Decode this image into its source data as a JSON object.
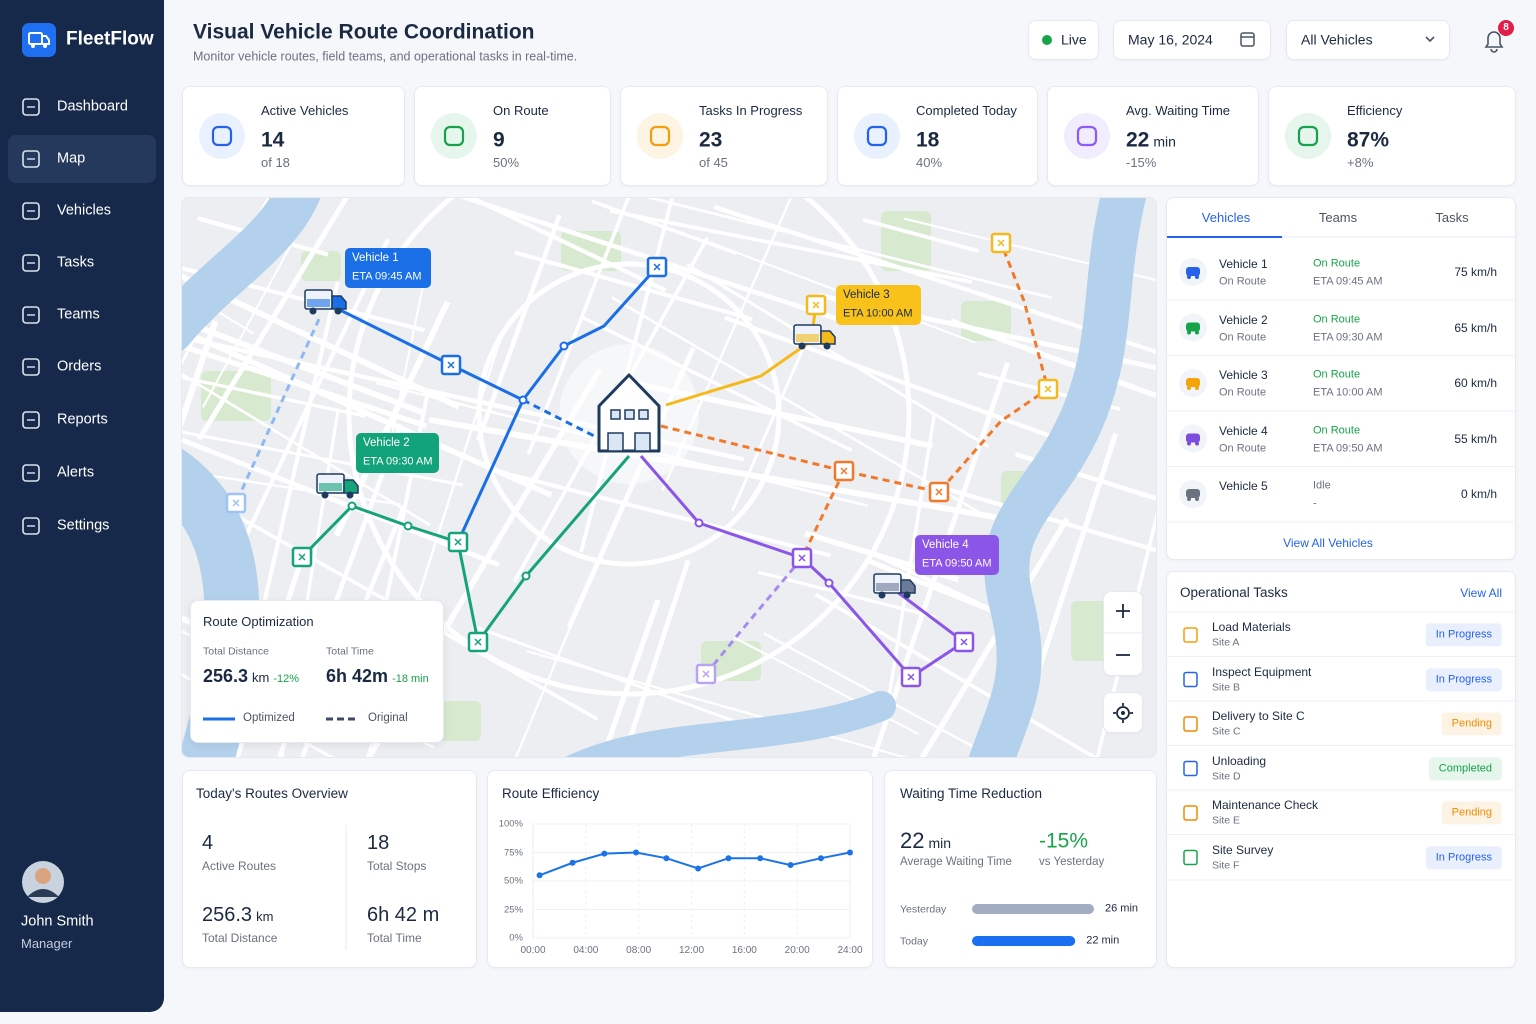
{
  "sidebar": {
    "brand": "FleetFlow",
    "nav": [
      "Dashboard",
      "Map",
      "Vehicles",
      "Tasks",
      "Teams",
      "Orders",
      "Reports",
      "Alerts",
      "Settings"
    ],
    "active": 1,
    "user": {
      "name": "John Smith",
      "role": "Manager"
    }
  },
  "header": {
    "title": "Visual Vehicle Route Coordination",
    "subtitle": "Monitor vehicle routes, field teams, and operational tasks in real-time.",
    "live": "Live",
    "date": "May 16, 2024",
    "filter": "All Vehicles",
    "notifications": 8
  },
  "stats": [
    {
      "label": "Active Vehicles",
      "value": 14,
      "sub": "of 18"
    },
    {
      "label": "On Route",
      "value": 9,
      "sub": "50%"
    },
    {
      "label": "Tasks In Progress",
      "value": 23,
      "sub": "of 45"
    },
    {
      "label": "Completed Today",
      "value": 18,
      "sub": "40%"
    },
    {
      "label": "Avg. Waiting Time",
      "value": 22,
      "unit": "min",
      "sub": "-15%"
    },
    {
      "label": "Efficiency",
      "value": "87%",
      "sub": "+8%"
    }
  ],
  "map": {
    "callouts": [
      {
        "vehicle": "Vehicle 1",
        "eta": "ETA 09:45 AM",
        "color": "#1a6fe6"
      },
      {
        "vehicle": "Vehicle 2",
        "eta": "ETA 09:30 AM",
        "color": "#12a37a"
      },
      {
        "vehicle": "Vehicle 3",
        "eta": "ETA 10:00 AM",
        "color": "#f8c21b"
      },
      {
        "vehicle": "Vehicle 4",
        "eta": "ETA 09:50 AM",
        "color": "#8b55e8"
      }
    ],
    "optimization": {
      "title": "Route Optimization",
      "distance_label": "Total Distance",
      "distance": 256.3,
      "distance_unit": "km",
      "distance_change": "-12%",
      "time_label": "Total Time",
      "time": "6h 42m",
      "time_change": "-18 min",
      "legend": [
        "Optimized",
        "Original"
      ]
    }
  },
  "vehicles_panel": {
    "tabs": [
      "Vehicles",
      "Teams",
      "Tasks"
    ],
    "rows": [
      {
        "name": "Vehicle 1",
        "state": "On Route",
        "status": "On Route",
        "eta": "ETA 09:45 AM",
        "speed": "75 km/h",
        "color": "#2563eb"
      },
      {
        "name": "Vehicle 2",
        "state": "On Route",
        "status": "On Route",
        "eta": "ETA 09:30 AM",
        "speed": "65 km/h",
        "color": "#16a34a"
      },
      {
        "name": "Vehicle 3",
        "state": "On Route",
        "status": "On Route",
        "eta": "ETA 10:00 AM",
        "speed": "60 km/h",
        "color": "#f5a30b"
      },
      {
        "name": "Vehicle 4",
        "state": "On Route",
        "status": "On Route",
        "eta": "ETA 09:50 AM",
        "speed": "55 km/h",
        "color": "#7c4ddf"
      },
      {
        "name": "Vehicle 5",
        "status": "Idle",
        "eta": "-",
        "speed": "0 km/h",
        "color": "#6b7280"
      }
    ],
    "link": "View All Vehicles"
  },
  "tasks_panel": {
    "title": "Operational Tasks",
    "link": "View All",
    "rows": [
      {
        "name": "Load Materials",
        "site": "Site A",
        "status": "In Progress",
        "color": "#2563eb"
      },
      {
        "name": "Inspect Equipment",
        "site": "Site B",
        "status": "In Progress",
        "color": "#2563eb"
      },
      {
        "name": "Delivery to Site C",
        "site": "Site C",
        "status": "Pending",
        "color": "#f08c00"
      },
      {
        "name": "Unloading",
        "site": "Site D",
        "status": "Completed",
        "color": "#16a34a"
      },
      {
        "name": "Maintenance Check",
        "site": "Site E",
        "status": "Pending",
        "color": "#f08c00"
      },
      {
        "name": "Site Survey",
        "site": "Site F",
        "status": "In Progress",
        "color": "#2563eb"
      }
    ]
  },
  "routes_overview": {
    "title": "Today's Routes Overview",
    "items": [
      {
        "value": 4,
        "label": "Active Routes"
      },
      {
        "value": 18,
        "label": "Total Stops"
      },
      {
        "value": 256.3,
        "unit": "km",
        "label": "Total Distance"
      },
      {
        "value": "6h 42 m",
        "label": "Total Time"
      }
    ]
  },
  "waiting_summary": {
    "value": 22,
    "unit": "min",
    "label": "Average Waiting Time",
    "change": "-15%",
    "change_label": "vs Yesterday"
  },
  "chart_data": [
    {
      "type": "line",
      "title": "Route Efficiency",
      "x": [
        0.5,
        3,
        5.4,
        7.8,
        10.1,
        12.5,
        14.8,
        17.2,
        19.5,
        21.8,
        24
      ],
      "values": [
        55,
        66,
        74,
        75,
        70,
        61,
        70,
        70,
        64,
        70,
        75
      ],
      "color": "#1a73e8",
      "xlim": [
        0,
        24
      ],
      "xticks": [
        {
          "value": 0,
          "label": "00:00"
        },
        {
          "value": 4,
          "label": "04:00"
        },
        {
          "value": 8,
          "label": "08:00"
        },
        {
          "value": 12,
          "label": "12:00"
        },
        {
          "value": 16,
          "label": "16:00"
        },
        {
          "value": 20,
          "label": "20:00"
        },
        {
          "value": 24,
          "label": "24:00"
        }
      ],
      "ylim": [
        0,
        100
      ],
      "yticks": [
        {
          "value": 0,
          "label": "0%"
        },
        {
          "value": 25,
          "label": "25%"
        },
        {
          "value": 50,
          "label": "50%"
        },
        {
          "value": 75,
          "label": "75%"
        },
        {
          "value": 100,
          "label": "100%"
        }
      ],
      "grid": true
    },
    {
      "type": "bar",
      "title": "Waiting Time Reduction",
      "categories": [
        "Yesterday",
        "Today"
      ],
      "values": [
        26,
        22
      ],
      "value_labels": [
        "26 min",
        "22 min"
      ],
      "colors": [
        "#a3adc2",
        "#1a6ff0"
      ]
    }
  ]
}
